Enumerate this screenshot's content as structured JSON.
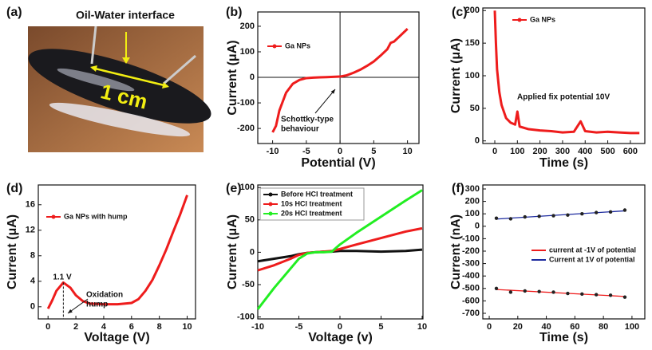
{
  "photo": {
    "panel": "(a)",
    "caption": "Oil-Water interface",
    "scale": "1 cm"
  },
  "chart_data": [
    {
      "type": "line",
      "panel": "(b)",
      "xlabel": "Potential (V)",
      "ylabel": "Current (μA)",
      "x": [
        -10,
        -9.5,
        -9,
        -8,
        -7,
        -6,
        -5,
        -4,
        -3,
        -2,
        -1,
        0,
        1,
        2,
        3,
        4,
        5,
        6,
        7,
        7.5,
        8,
        9,
        10
      ],
      "series": [
        {
          "name": "Ga NPs",
          "color": "#ee1c1c",
          "values": [
            -215,
            -190,
            -130,
            -60,
            -25,
            -10,
            -3,
            -1,
            0,
            1,
            2,
            3,
            8,
            18,
            30,
            45,
            62,
            85,
            110,
            135,
            140,
            165,
            190
          ]
        }
      ],
      "xlim": [
        -12.2,
        11.7
      ],
      "xticks": [
        -10,
        -5,
        0,
        5,
        10
      ],
      "ylim": [
        -259,
        256
      ],
      "yticks": [
        -200,
        -100,
        0,
        100,
        200
      ],
      "zero_lines": true,
      "annotations": [
        [
          "Schottky-type",
          "behaviour"
        ]
      ]
    },
    {
      "type": "line",
      "panel": "(c)",
      "xlabel": "Time (s)",
      "ylabel": "Current (μA)",
      "x": [
        0,
        5,
        10,
        20,
        30,
        50,
        70,
        90,
        100,
        110,
        150,
        200,
        250,
        300,
        350,
        380,
        400,
        450,
        500,
        550,
        600,
        640
      ],
      "series": [
        {
          "name": "Ga NPs",
          "color": "#ee1c1c",
          "values": [
            200,
            150,
            110,
            75,
            55,
            35,
            28,
            25,
            45,
            22,
            18,
            16,
            15,
            13,
            14,
            30,
            15,
            13,
            14,
            13,
            12,
            12
          ]
        }
      ],
      "xlim": [
        -53,
        664
      ],
      "xticks": [
        0,
        100,
        200,
        300,
        400,
        500,
        600
      ],
      "ylim": [
        -4,
        204
      ],
      "yticks": [
        0,
        50,
        100,
        150,
        200
      ],
      "annotations": [
        [
          "Applied fix potential 10V"
        ]
      ]
    },
    {
      "type": "line",
      "panel": "(d)",
      "xlabel": "Voltage (V)",
      "ylabel": "Current (μA)",
      "x": [
        0,
        0.3,
        0.6,
        1.1,
        1.6,
        2,
        2.5,
        3,
        4,
        5,
        6,
        6.5,
        7,
        7.5,
        8,
        8.5,
        9,
        9.5,
        10
      ],
      "series": [
        {
          "name": "Ga NPs with hump",
          "color": "#ee1c1c",
          "values": [
            -0.3,
            1,
            2.5,
            3.8,
            3,
            1.8,
            0.9,
            0.5,
            0.4,
            0.4,
            0.6,
            1.2,
            2.5,
            4.2,
            6.5,
            9,
            11.8,
            14.5,
            17.5
          ]
        }
      ],
      "xlim": [
        -0.7,
        10.6
      ],
      "xticks": [
        0,
        2,
        4,
        6,
        8,
        10
      ],
      "ylim": [
        -1.9,
        19.1
      ],
      "yticks": [
        0,
        4,
        8,
        12,
        16
      ],
      "annotations": [
        [
          "1.1 V"
        ],
        [
          "Oxidation",
          "hump"
        ]
      ]
    },
    {
      "type": "line",
      "panel": "(e)",
      "xlabel": "Voltage (v)",
      "ylabel": "Current (μA)",
      "x": [
        -10,
        -8,
        -6,
        -5,
        -4,
        -3,
        -2,
        -1,
        0,
        2,
        5,
        8,
        10
      ],
      "series": [
        {
          "name": "Before HCl treatment",
          "color": "#111111",
          "values": [
            -14,
            -10,
            -6,
            -3,
            -1,
            0,
            1,
            1,
            2,
            2,
            1,
            2,
            4
          ]
        },
        {
          "name": "10s HCl treatment",
          "color": "#ee1c1c",
          "values": [
            -28,
            -20,
            -10,
            -4,
            -1,
            0,
            1,
            2,
            5,
            12,
            22,
            32,
            37
          ]
        },
        {
          "name": "20s HCl treatment",
          "color": "#22ee22",
          "values": [
            -88,
            -55,
            -25,
            -10,
            -2,
            0,
            0,
            1,
            12,
            30,
            55,
            80,
            96
          ]
        }
      ],
      "xlim": [
        -10,
        10.1
      ],
      "xticks": [
        -10,
        -5,
        0,
        5,
        10
      ],
      "ylim": [
        -103,
        104
      ],
      "yticks": [
        -100,
        -50,
        0,
        50,
        100
      ]
    },
    {
      "type": "scatter",
      "panel": "(f)",
      "xlabel": "Time (s)",
      "ylabel": "Current (nA)",
      "x": [
        5,
        15,
        25,
        35,
        45,
        55,
        65,
        75,
        85,
        95
      ],
      "series": [
        {
          "name": "current at -1V of potential",
          "color": "#ee1c1c",
          "values": [
            -500,
            -530,
            -520,
            -525,
            -530,
            -540,
            -545,
            -550,
            -555,
            -570
          ]
        },
        {
          "name": "Current at 1V of potential",
          "color": "#1c2a9e",
          "values": [
            65,
            60,
            75,
            80,
            85,
            90,
            100,
            110,
            115,
            130
          ]
        }
      ],
      "xlim": [
        -4.5,
        109
      ],
      "xticks": [
        0,
        20,
        40,
        60,
        80,
        100
      ],
      "ylim": [
        -745,
        332
      ],
      "yticks": [
        -700,
        -600,
        -500,
        -400,
        -300,
        -200,
        -100,
        0,
        100,
        200,
        300
      ],
      "fit": true
    }
  ]
}
